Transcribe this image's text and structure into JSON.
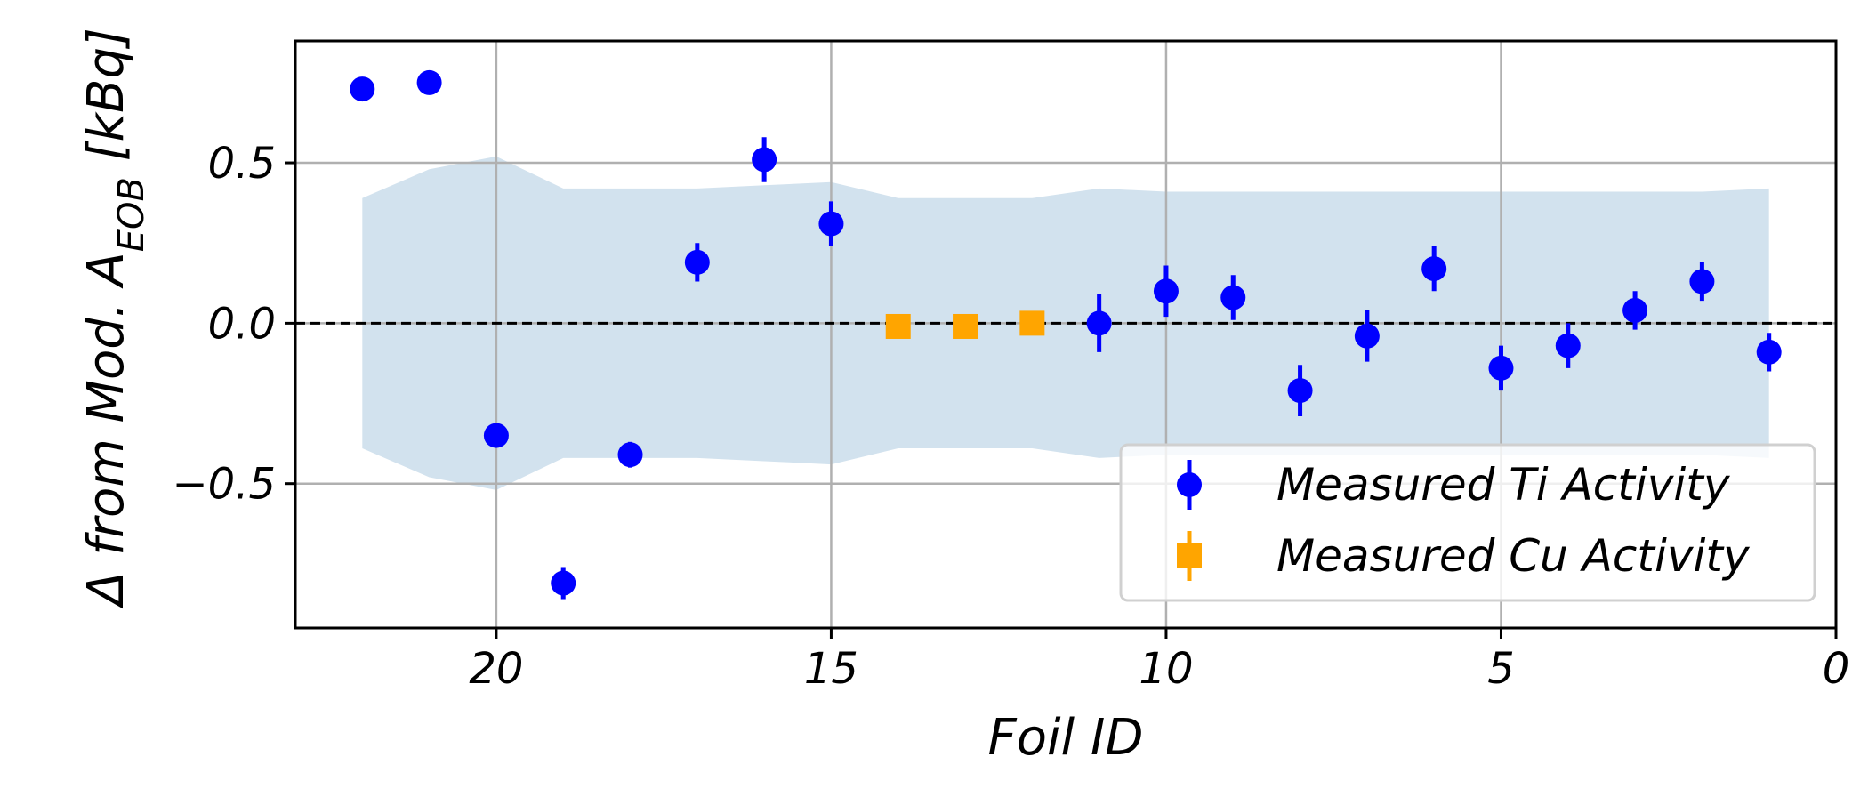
{
  "chart_data": {
    "type": "scatter",
    "title": "",
    "xlabel": "Foil ID",
    "ylabel": {
      "prefix": "Δ from Mod. A",
      "subscript": "EOB",
      "suffix": " [kBq]"
    },
    "xlim": [
      23,
      0
    ],
    "ylim": [
      -0.95,
      0.88
    ],
    "x_ticks": [
      20,
      15,
      10,
      5,
      0
    ],
    "x_tick_labels": [
      "20",
      "15",
      "10",
      "5",
      "0"
    ],
    "y_ticks": [
      0.5,
      0.0,
      -0.5
    ],
    "y_tick_labels": [
      "0.5",
      "0.0",
      "−0.5"
    ],
    "grid": true,
    "reference_line": {
      "y": 0.0,
      "style": "dashed",
      "color": "#000000"
    },
    "uncertainty_band": {
      "color": "#d2e2ee",
      "x": [
        22,
        21,
        20,
        19,
        18,
        17,
        16,
        15,
        14,
        13,
        12,
        11,
        10,
        9,
        8,
        7,
        6,
        5,
        4,
        3,
        2,
        1
      ],
      "upper": [
        0.39,
        0.48,
        0.52,
        0.42,
        0.42,
        0.42,
        0.43,
        0.44,
        0.39,
        0.39,
        0.39,
        0.42,
        0.41,
        0.41,
        0.41,
        0.41,
        0.41,
        0.41,
        0.41,
        0.41,
        0.41,
        0.42
      ],
      "lower": [
        -0.39,
        -0.48,
        -0.52,
        -0.42,
        -0.42,
        -0.42,
        -0.43,
        -0.44,
        -0.39,
        -0.39,
        -0.39,
        -0.42,
        -0.41,
        -0.41,
        -0.41,
        -0.41,
        -0.41,
        -0.41,
        -0.41,
        -0.41,
        -0.41,
        -0.42
      ]
    },
    "series": [
      {
        "name": "Measured Ti Activity",
        "marker": "circle",
        "color": "#0000ff",
        "x": [
          22,
          21,
          20,
          19,
          18,
          17,
          16,
          15,
          11,
          10,
          9,
          8,
          7,
          6,
          5,
          4,
          3,
          2,
          1
        ],
        "y": [
          0.73,
          0.75,
          -0.35,
          -0.81,
          -0.41,
          0.19,
          0.51,
          0.31,
          0.0,
          0.1,
          0.08,
          -0.21,
          -0.04,
          0.17,
          -0.14,
          -0.07,
          0.04,
          0.13,
          -0.09
        ],
        "err": [
          0.0,
          0.0,
          0.0,
          0.05,
          0.04,
          0.06,
          0.07,
          0.07,
          0.09,
          0.08,
          0.07,
          0.08,
          0.08,
          0.07,
          0.07,
          0.07,
          0.06,
          0.06,
          0.06
        ]
      },
      {
        "name": "Measured Cu Activity",
        "marker": "square",
        "color": "#ffa500",
        "x": [
          14,
          13,
          12
        ],
        "y": [
          -0.01,
          -0.01,
          0.0
        ],
        "err": [
          0.0,
          0.0,
          0.0
        ]
      }
    ],
    "legend": {
      "position": "bottom-right"
    }
  }
}
